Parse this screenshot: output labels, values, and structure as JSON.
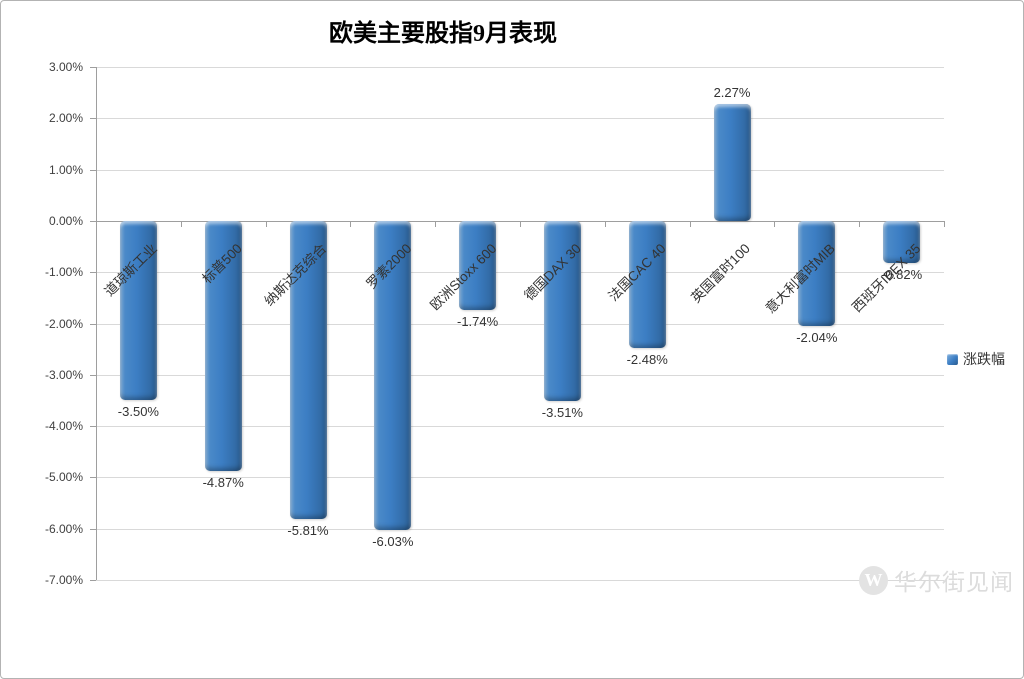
{
  "title": "欧美主要股指9月表现",
  "legend": {
    "label": "涨跌幅"
  },
  "watermark": {
    "logo_letter": "W",
    "text": "华尔街见闻"
  },
  "colors": {
    "bar": "#3c7ec4",
    "bar_dark_edge": "#2a5b8e",
    "bar_light_edge": "#7fafdd",
    "gridline": "#d9d9d9",
    "axis": "#9e9e9e",
    "text": "#333333",
    "watermark": "#dcdcdc"
  },
  "chart_data": {
    "type": "bar",
    "title": "欧美主要股指9月表现",
    "series_name": "涨跌幅",
    "categories": [
      "道琼斯工业",
      "标普500",
      "纳斯达克综合",
      "罗素2000",
      "欧洲Stoxx 600",
      "德国DAX 30",
      "法国CAC 40",
      "英国富时100",
      "意大利富时MIB",
      "西班牙IBEX 35"
    ],
    "values": [
      -3.5,
      -4.87,
      -5.81,
      -6.03,
      -1.74,
      -3.51,
      -2.48,
      2.27,
      -2.04,
      -0.82
    ],
    "data_labels": [
      "-3.50%",
      "-4.87%",
      "-5.81%",
      "-6.03%",
      "-1.74%",
      "-3.51%",
      "-2.48%",
      "2.27%",
      "-2.04%",
      "-0.82%"
    ],
    "xlabel": "",
    "ylabel": "",
    "ylim": [
      -7,
      3
    ],
    "ytick_step": 1,
    "ytick_labels": [
      "3.00%",
      "2.00%",
      "1.00%",
      "0.00%",
      "-1.00%",
      "-2.00%",
      "-3.00%",
      "-4.00%",
      "-5.00%",
      "-6.00%",
      "-7.00%"
    ],
    "grid": true,
    "legend_position": "right",
    "bar_color": "#3c7ec4"
  }
}
